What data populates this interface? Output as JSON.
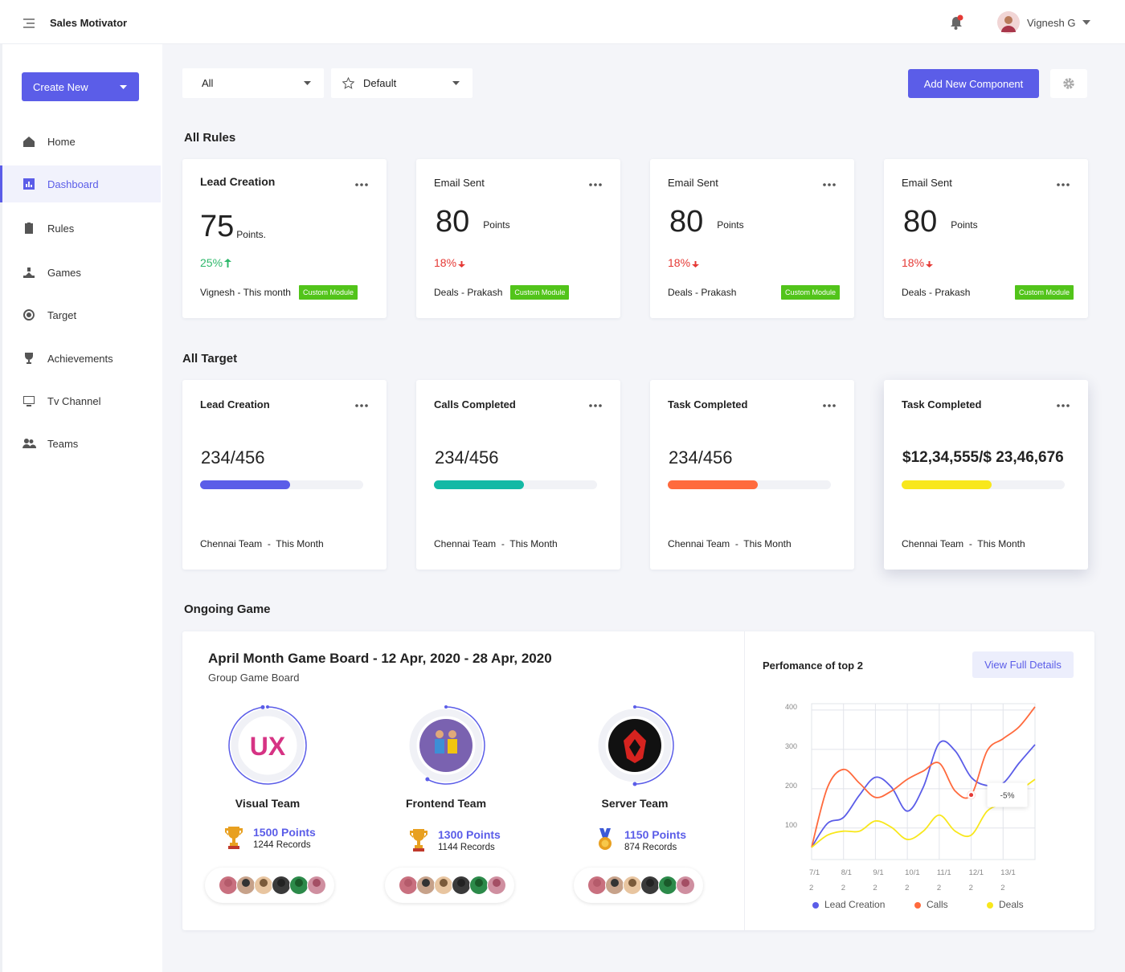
{
  "header": {
    "app_name": "Sales Motivator",
    "user_name": "Vignesh G"
  },
  "sidebar": {
    "create_button": "Create New",
    "nav": [
      {
        "label": "Home"
      },
      {
        "label": "Dashboard",
        "active": true
      },
      {
        "label": "Rules"
      },
      {
        "label": "Games"
      },
      {
        "label": "Target"
      },
      {
        "label": "Achievements"
      },
      {
        "label": "Tv Channel"
      },
      {
        "label": "Teams"
      }
    ]
  },
  "toolbar": {
    "filter": "All",
    "view": "Default",
    "add_button": "Add New Component"
  },
  "rules": {
    "title": "All Rules",
    "cards": [
      {
        "title": "Lead Creation",
        "value": 75,
        "unit": "Points.",
        "change": "25%",
        "trend": "up",
        "owner": "Vignesh - This month",
        "tag": "Custom Module"
      },
      {
        "title": "Email Sent",
        "value": 80,
        "unit": "Points",
        "change": "18%",
        "trend": "down",
        "owner": "Deals - Prakash",
        "tag": "Custom Module"
      },
      {
        "title": "Email Sent",
        "value": 80,
        "unit": "Points",
        "change": "18%",
        "trend": "down",
        "owner": "Deals - Prakash",
        "tag": "Custom Module"
      },
      {
        "title": "Email Sent",
        "value": 80,
        "unit": "Points",
        "change": "18%",
        "trend": "down",
        "owner": "Deals - Prakash",
        "tag": "Custom Module"
      }
    ]
  },
  "targets": {
    "title": "All Target",
    "cards": [
      {
        "title": "Lead Creation",
        "progress": "234/456",
        "progress_percent": 55,
        "color": "#5b5de8",
        "footer": "Chennai Team  -  This Month"
      },
      {
        "title": "Calls Completed",
        "progress": "234/456",
        "progress_percent": 55,
        "color": "#13b9a5",
        "footer": "Chennai Team  -  This Month"
      },
      {
        "title": "Task Completed",
        "progress": "234/456",
        "progress_percent": 55,
        "color": "#ff6a3d",
        "footer": "Chennai Team  -  This Month"
      },
      {
        "title": "Task Completed",
        "progress": "$12,34,555/$ 23,46,676",
        "progress_percent": 55,
        "color": "#f8e71c",
        "footer": "Chennai Team  -  This Month"
      }
    ]
  },
  "game": {
    "title": "Ongoing Game",
    "board_title": "April Month Game Board - 12 Apr, 2020 -  28 Apr, 2020",
    "board_subtitle": "Group Game Board",
    "teams": [
      {
        "name": "Visual Team",
        "points": "1500 Points",
        "records": "1244 Records",
        "ring_percent": 98,
        "logo_text": "UX"
      },
      {
        "name": "Frontend Team",
        "points": "1300 Points",
        "records": "1144 Records",
        "ring_percent": 58
      },
      {
        "name": "Server Team",
        "points": "1150 Points",
        "records": "874 Records",
        "ring_percent": 50
      }
    ]
  },
  "performance": {
    "title": "Perfomance of top 2",
    "button": "View Full Details",
    "chart_data": {
      "type": "line",
      "categories": [
        "7/12",
        null,
        "8/12",
        null,
        "9/12",
        null,
        "10/12",
        null,
        "11/12",
        null,
        "12/12",
        null,
        "13/12",
        null,
        null
      ],
      "ylim": [
        20,
        416
      ],
      "yticks": [
        100,
        200,
        300,
        400
      ],
      "grid": true,
      "series": [
        {
          "name": "Lead Creation",
          "color": "#5b5de8",
          "values": [
            51,
            112,
            127,
            184,
            229,
            204,
            143,
            204,
            316,
            296,
            229,
            208,
            214,
            265,
            312
          ]
        },
        {
          "name": "Calls",
          "color": "#ff6a3d",
          "values": [
            51,
            204,
            249,
            214,
            178,
            194,
            224,
            245,
            265,
            194,
            184,
            296,
            327,
            357,
            408
          ]
        },
        {
          "name": "Deals",
          "color": "#f8e71c",
          "values": [
            51,
            82,
            92,
            92,
            118,
            102,
            71,
            92,
            133,
            92,
            82,
            143,
            163,
            194,
            224
          ]
        }
      ],
      "annotation": {
        "text": "-5%",
        "series": 1,
        "index": 10
      }
    }
  }
}
